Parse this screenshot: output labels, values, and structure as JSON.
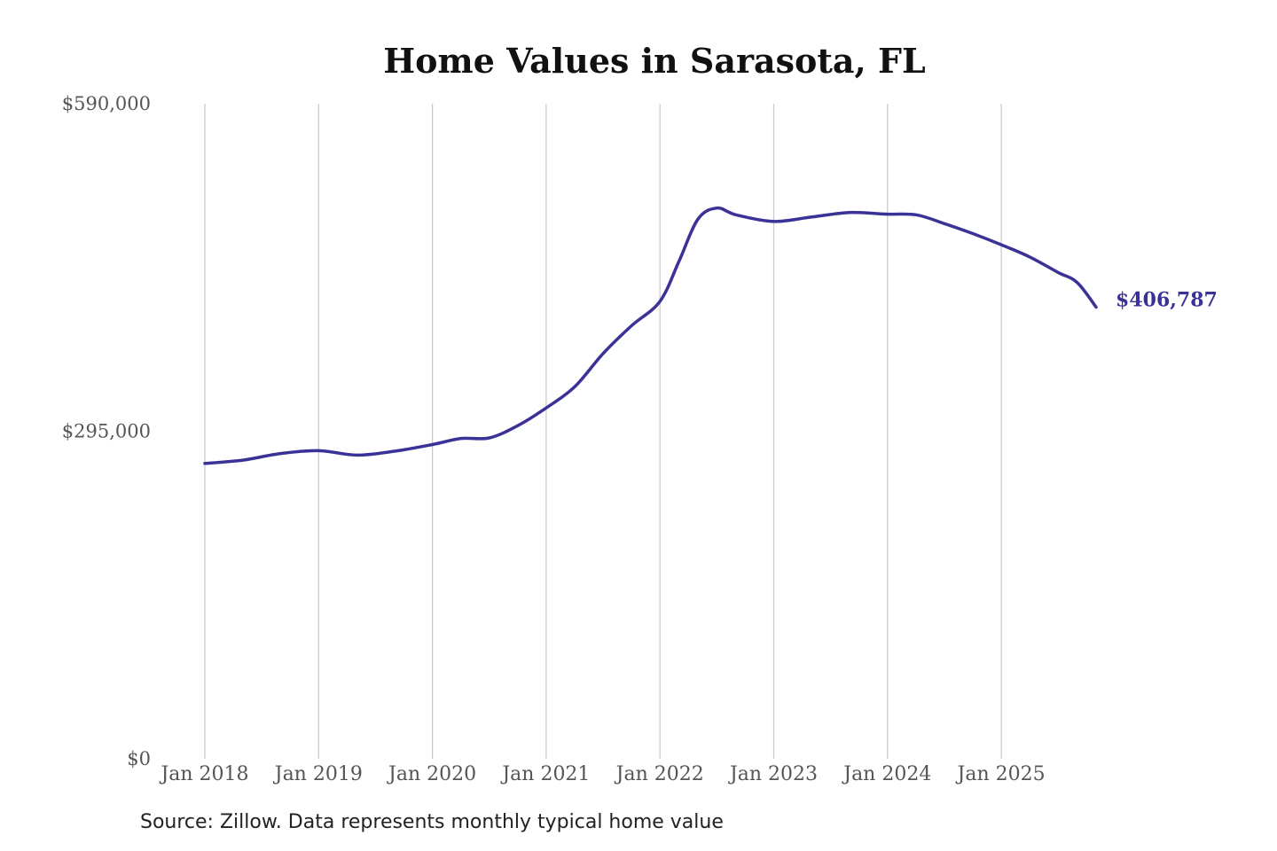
{
  "chart_data": {
    "type": "line",
    "title": "Home Values in Sarasota, FL",
    "subtitle": "",
    "xlabel": "",
    "ylabel": "",
    "ylim": [
      0,
      590000
    ],
    "y_ticks": [
      {
        "value": 0,
        "label": "$0"
      },
      {
        "value": 295000,
        "label": "$295,000"
      },
      {
        "value": 590000,
        "label": "$590,000"
      }
    ],
    "x_ticks": [
      {
        "value": "2018-01",
        "label": "Jan 2018"
      },
      {
        "value": "2019-01",
        "label": "Jan 2019"
      },
      {
        "value": "2020-01",
        "label": "Jan 2020"
      },
      {
        "value": "2021-01",
        "label": "Jan 2021"
      },
      {
        "value": "2022-01",
        "label": "Jan 2022"
      },
      {
        "value": "2023-01",
        "label": "Jan 2023"
      },
      {
        "value": "2024-01",
        "label": "Jan 2024"
      },
      {
        "value": "2025-01",
        "label": "Jan 2025"
      }
    ],
    "x_range": [
      "2018-01",
      "2025-12"
    ],
    "grid": {
      "vertical": true,
      "horizontal": false
    },
    "legend": "none",
    "series": [
      {
        "color": "#3a3296",
        "points": [
          {
            "date": "2018-01",
            "value": 266000
          },
          {
            "date": "2018-05",
            "value": 269000
          },
          {
            "date": "2018-09",
            "value": 275000
          },
          {
            "date": "2019-01",
            "value": 277500
          },
          {
            "date": "2019-05",
            "value": 273500
          },
          {
            "date": "2019-09",
            "value": 277000
          },
          {
            "date": "2020-01",
            "value": 283000
          },
          {
            "date": "2020-04",
            "value": 288500
          },
          {
            "date": "2020-07",
            "value": 289000
          },
          {
            "date": "2020-10",
            "value": 300000
          },
          {
            "date": "2021-01",
            "value": 316000
          },
          {
            "date": "2021-04",
            "value": 335000
          },
          {
            "date": "2021-07",
            "value": 365000
          },
          {
            "date": "2021-10",
            "value": 390000
          },
          {
            "date": "2022-01",
            "value": 412000
          },
          {
            "date": "2022-03",
            "value": 448000
          },
          {
            "date": "2022-05",
            "value": 486000
          },
          {
            "date": "2022-07",
            "value": 496000
          },
          {
            "date": "2022-09",
            "value": 490000
          },
          {
            "date": "2023-01",
            "value": 484000
          },
          {
            "date": "2023-05",
            "value": 488000
          },
          {
            "date": "2023-09",
            "value": 492000
          },
          {
            "date": "2024-01",
            "value": 490500
          },
          {
            "date": "2024-04",
            "value": 490000
          },
          {
            "date": "2024-07",
            "value": 482000
          },
          {
            "date": "2024-10",
            "value": 473000
          },
          {
            "date": "2025-01",
            "value": 463000
          },
          {
            "date": "2025-04",
            "value": 452000
          },
          {
            "date": "2025-07",
            "value": 438000
          },
          {
            "date": "2025-09",
            "value": 429000
          },
          {
            "date": "2025-11",
            "value": 406787
          }
        ]
      }
    ],
    "annotations": [
      {
        "text": "$406,787",
        "date": "2025-11",
        "value": 406787
      }
    ]
  },
  "source_note": "Source: Zillow. Data represents monthly typical home value"
}
